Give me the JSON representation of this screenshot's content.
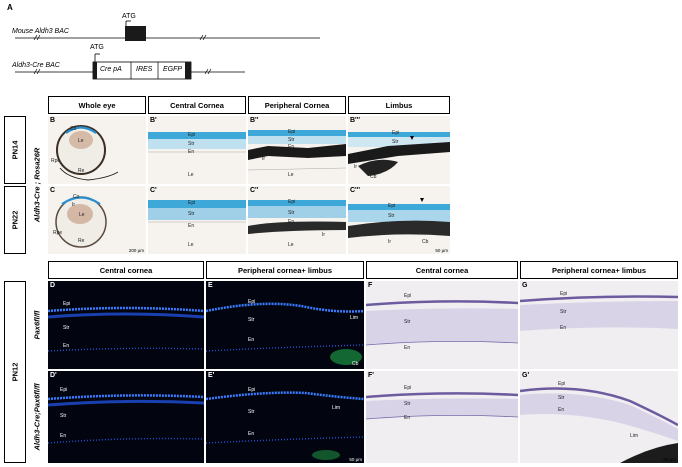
{
  "panel_a": {
    "letter": "A",
    "mouse_bac_label": "Mouse Aldh3 BAC",
    "cre_bac_label": "Aldh3-Cre BAC",
    "atg_label": "ATG",
    "cassette": [
      "Cre pA",
      "IRES",
      "EGFP"
    ]
  },
  "top_grid": {
    "columns": [
      "Whole eye",
      "Central Cornea",
      "Peripheral Cornea",
      "Limbus"
    ],
    "row_labels": [
      "PN14",
      "PN22"
    ],
    "genotype_label": "Aldh3-Cre ; Rosa26R",
    "row1_letters": [
      "B",
      "B'",
      "B''",
      "B'''"
    ],
    "row2_letters": [
      "C",
      "C'",
      "C''",
      "C'''"
    ],
    "whole_eye_tags": [
      "Co",
      "Le",
      "Rpe",
      "Re"
    ],
    "whole_eye_tags_c": [
      "Co",
      "Ir",
      "Le",
      "Rpe",
      "Re"
    ],
    "layer_tags": [
      "Epi",
      "Str",
      "En",
      "Le"
    ],
    "periph_tags": [
      "Epi",
      "Str",
      "En",
      "Ir",
      "Le"
    ],
    "limbus_tags": [
      "Epi",
      "Str",
      "En",
      "Ir",
      "Cb"
    ],
    "scale_left": "200 μm",
    "scale_right": "50 μm"
  },
  "bottom_grid": {
    "columns": [
      "Central cornea",
      "Peripheral cornea+ limbus",
      "Central cornea",
      "Peripheral cornea+ limbus"
    ],
    "row_label": "PN12",
    "genotypes": [
      "Pax6fl/fl",
      "Aldh3-Cre;Pax6fl/fl"
    ],
    "row1_letters": [
      "D",
      "E",
      "F",
      "G"
    ],
    "row2_letters": [
      "D'",
      "E'",
      "F'",
      "G'"
    ],
    "layer_tags": [
      "Epi",
      "Str",
      "En"
    ],
    "limbus_tag": "Lim",
    "cb_tag": "Cb",
    "scale": "50 μm"
  }
}
